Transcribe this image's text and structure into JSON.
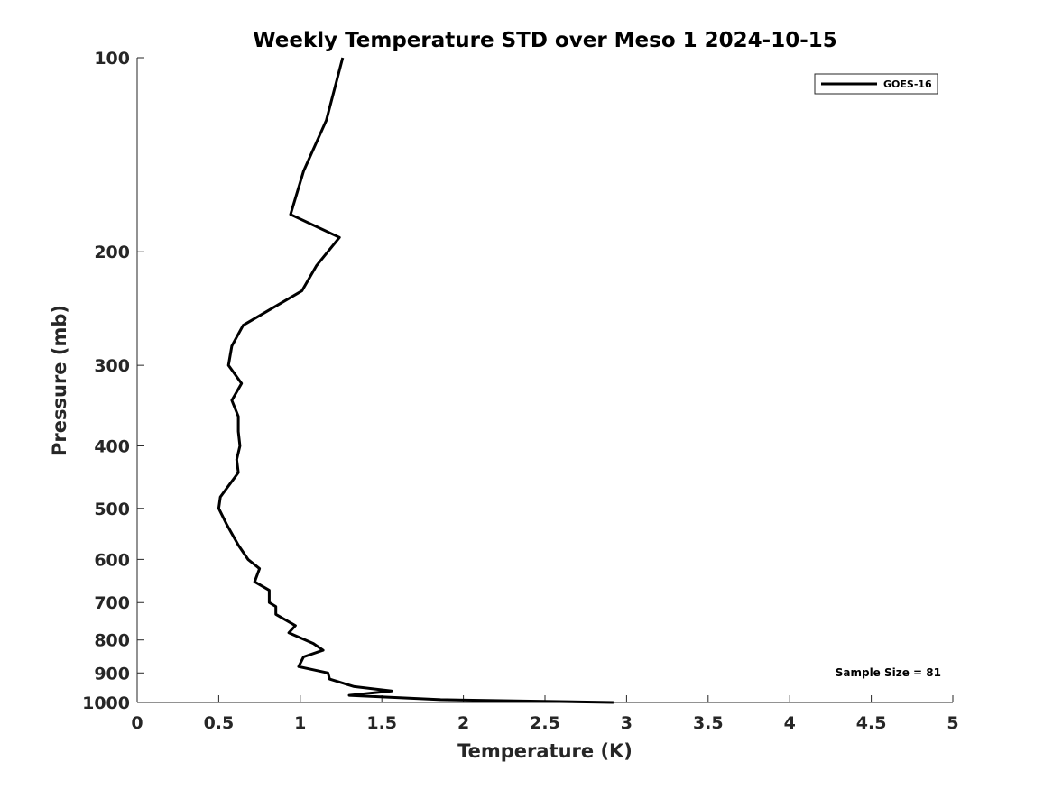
{
  "chart_data": {
    "type": "line",
    "title": "Weekly Temperature STD over Meso 1 2024-10-15",
    "xlabel": "Temperature (K)",
    "ylabel": "Pressure (mb)",
    "xlim": [
      0,
      5
    ],
    "ylim": [
      100,
      1000
    ],
    "y_scale": "log",
    "y_reversed": true,
    "x_ticks": [
      0,
      0.5,
      1,
      1.5,
      2,
      2.5,
      3,
      3.5,
      4,
      4.5,
      5
    ],
    "x_tick_labels": [
      "0",
      "0.5",
      "1",
      "1.5",
      "2",
      "2.5",
      "3",
      "3.5",
      "4",
      "4.5",
      "5"
    ],
    "y_ticks": [
      100,
      200,
      300,
      400,
      500,
      600,
      700,
      800,
      900,
      1000
    ],
    "y_tick_labels": [
      "100",
      "200",
      "300",
      "400",
      "500",
      "600",
      "700",
      "800",
      "900",
      "1000"
    ],
    "grid": false,
    "legend": {
      "location": "top-right",
      "entries": [
        "GOES-16"
      ]
    },
    "annotation": "Sample Size = 81",
    "series": [
      {
        "name": "GOES-16",
        "color": "#000000",
        "temperature": [
          1.26,
          1.16,
          1.02,
          0.94,
          1.24,
          1.1,
          1.01,
          0.65,
          0.58,
          0.56,
          0.64,
          0.58,
          0.62,
          0.62,
          0.63,
          0.61,
          0.62,
          0.51,
          0.5,
          0.55,
          0.62,
          0.68,
          0.75,
          0.72,
          0.81,
          0.81,
          0.85,
          0.85,
          0.97,
          0.93,
          1.08,
          1.14,
          1.02,
          0.99,
          1.17,
          1.18,
          1.33,
          1.56,
          1.3,
          1.86,
          2.92
        ],
        "pressure": [
          100,
          125,
          150,
          175,
          190,
          210,
          230,
          260,
          280,
          300,
          320,
          340,
          360,
          380,
          400,
          420,
          440,
          480,
          500,
          530,
          570,
          600,
          620,
          650,
          670,
          700,
          710,
          730,
          760,
          780,
          810,
          830,
          850,
          880,
          900,
          920,
          945,
          960,
          975,
          990,
          1000
        ]
      }
    ]
  }
}
